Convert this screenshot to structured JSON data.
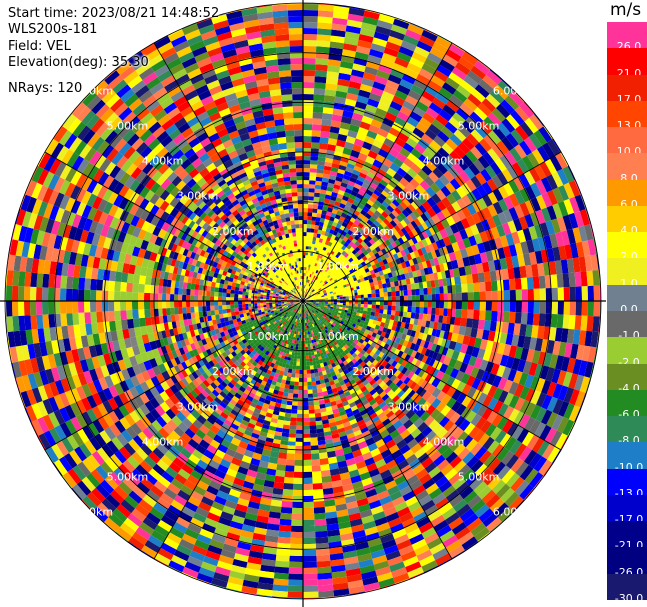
{
  "info": {
    "start_time": "Start time: 2023/08/21 14:48:52",
    "site": "WLS200s-181",
    "field": "Field: VEL",
    "elevation": "Elevation(deg): 35.30",
    "nrays": "NRays: 120"
  },
  "chart_data": {
    "type": "heatmap",
    "projection": "polar-ppi",
    "nrays": 120,
    "ring_labels": [
      "1.00km",
      "2.00km",
      "3.00km",
      "4.00km",
      "5.00km",
      "6.00km"
    ],
    "colorbar": {
      "unit": "m/s",
      "levels": [
        {
          "label": "26.0",
          "color": "#ff3399"
        },
        {
          "label": "21.0",
          "color": "#ff0000"
        },
        {
          "label": "17.0",
          "color": "#f02000"
        },
        {
          "label": "13.0",
          "color": "#ff4500"
        },
        {
          "label": "10.0",
          "color": "#ff6a40"
        },
        {
          "label": "8.0",
          "color": "#ff7f50"
        },
        {
          "label": "6.0",
          "color": "#ff9900"
        },
        {
          "label": "4.0",
          "color": "#ffcc00"
        },
        {
          "label": "2.0",
          "color": "#ffff00"
        },
        {
          "label": "1.0",
          "color": "#f0f020"
        },
        {
          "label": "0.0",
          "color": "#708090"
        },
        {
          "label": "-1.0",
          "color": "#696969"
        },
        {
          "label": "-2.0",
          "color": "#9acd32"
        },
        {
          "label": "-4.0",
          "color": "#6b8e23"
        },
        {
          "label": "-6.0",
          "color": "#228b22"
        },
        {
          "label": "-8.0",
          "color": "#2e8b57"
        },
        {
          "label": "-10.0",
          "color": "#1e7fc8"
        },
        {
          "label": "-13.0",
          "color": "#0000ff"
        },
        {
          "label": "-17.0",
          "color": "#0000cd"
        },
        {
          "label": "-21.0",
          "color": "#00008b"
        },
        {
          "label": "-26.0",
          "color": "#000080"
        },
        {
          "label": "-30.0",
          "color": "#191970"
        }
      ]
    },
    "near_field": {
      "north_sector": "#ffff00",
      "south_sector": "#228b22",
      "west_sector": "#9acd32",
      "west_outer": "#808080"
    }
  }
}
